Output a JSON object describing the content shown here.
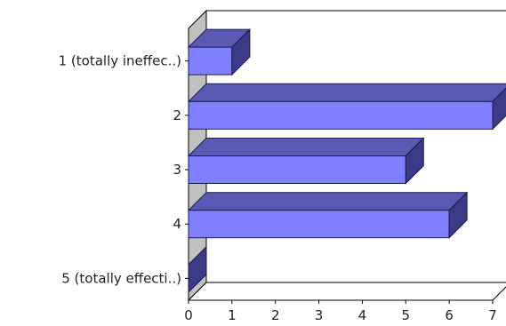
{
  "chart_data": {
    "type": "bar",
    "orientation": "horizontal",
    "style": "3d",
    "categories": [
      "1 (totally ineffec..)",
      "2",
      "3",
      "4",
      "5 (totally effecti..)"
    ],
    "values": [
      1,
      7,
      5,
      6,
      0
    ],
    "xlim": [
      0,
      7
    ],
    "xticks": [
      "0",
      "1",
      "2",
      "3",
      "4",
      "5",
      "6",
      "7"
    ],
    "title": "",
    "xlabel": "",
    "ylabel": "",
    "grid": false,
    "legend": "none",
    "colors": {
      "bar_front": "#8080ff",
      "bar_top": "#5a5ab5",
      "bar_side": "#3b3b88",
      "bar_edge": "#1a1a4a",
      "wall": "#c0c0c0",
      "axis": "#000000"
    }
  }
}
